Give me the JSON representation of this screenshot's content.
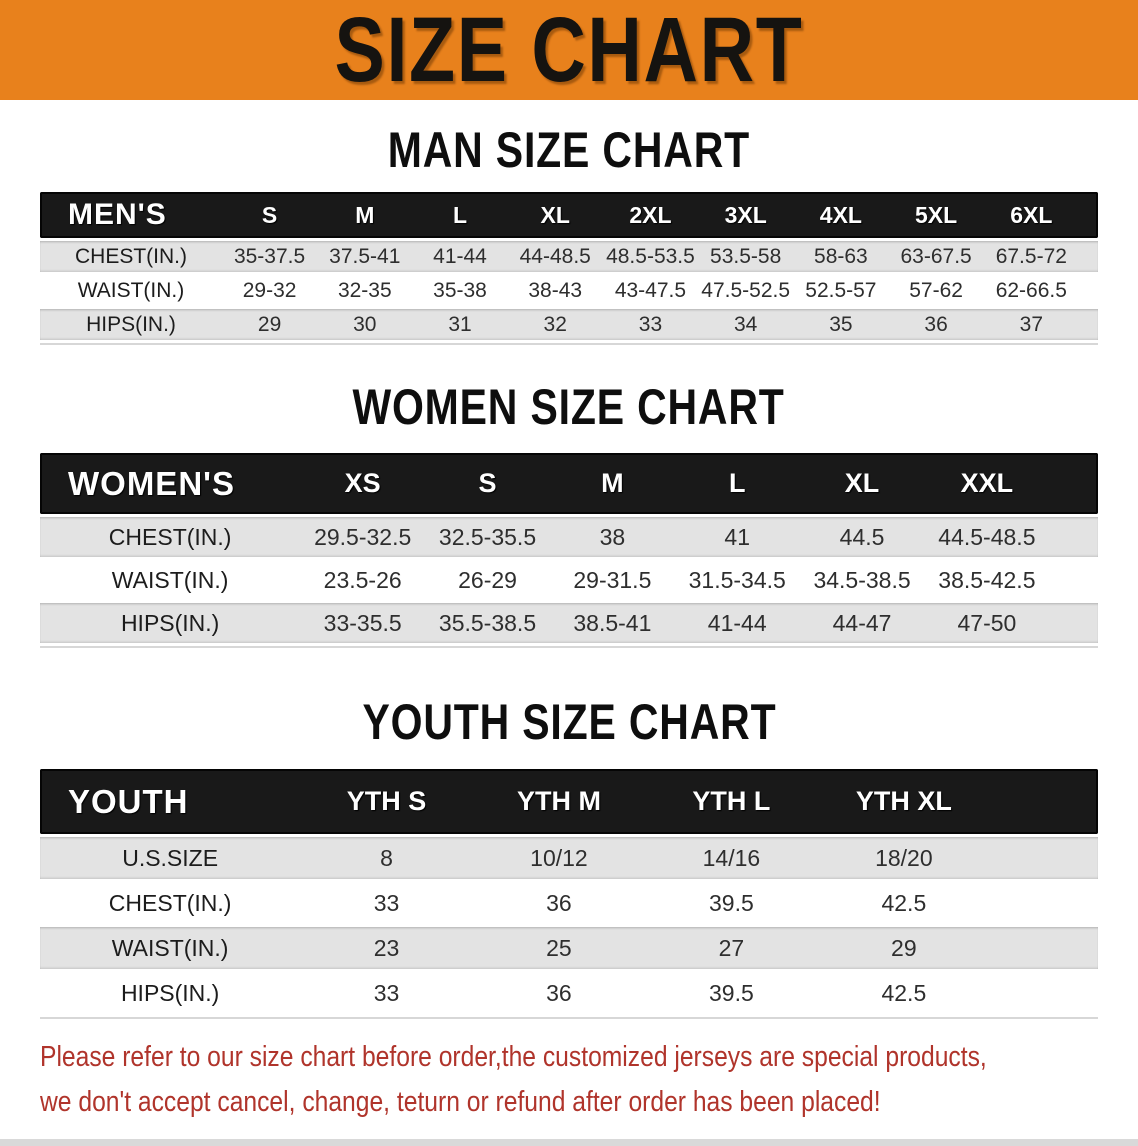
{
  "banner": {
    "title": "SIZE CHART"
  },
  "colors": {
    "banner_bg": "#E8811C",
    "header_bar_bg": "#191919",
    "row_shade": "#E3E3E3",
    "note_red": "#B0342B"
  },
  "men": {
    "heading": "MAN SIZE CHART",
    "label": "MEN'S",
    "sizes": [
      "S",
      "M",
      "L",
      "XL",
      "2XL",
      "3XL",
      "4XL",
      "5XL",
      "6XL"
    ],
    "rows": [
      {
        "label": "CHEST(IN.)",
        "values": [
          "35-37.5",
          "37.5-41",
          "41-44",
          "44-48.5",
          "48.5-53.5",
          "53.5-58",
          "58-63",
          "63-67.5",
          "67.5-72"
        ]
      },
      {
        "label": "WAIST(IN.)",
        "values": [
          "29-32",
          "32-35",
          "35-38",
          "38-43",
          "43-47.5",
          "47.5-52.5",
          "52.5-57",
          "57-62",
          "62-66.5"
        ]
      },
      {
        "label": "HIPS(IN.)",
        "values": [
          "29",
          "30",
          "31",
          "32",
          "33",
          "34",
          "35",
          "36",
          "37"
        ]
      }
    ]
  },
  "women": {
    "heading": "WOMEN SIZE CHART",
    "label": "WOMEN'S",
    "sizes": [
      "XS",
      "S",
      "M",
      "L",
      "XL",
      "XXL"
    ],
    "rows": [
      {
        "label": "CHEST(IN.)",
        "values": [
          "29.5-32.5",
          "32.5-35.5",
          "38",
          "41",
          "44.5",
          "44.5-48.5"
        ]
      },
      {
        "label": "WAIST(IN.)",
        "values": [
          "23.5-26",
          "26-29",
          "29-31.5",
          "31.5-34.5",
          "34.5-38.5",
          "38.5-42.5"
        ]
      },
      {
        "label": "HIPS(IN.)",
        "values": [
          "33-35.5",
          "35.5-38.5",
          "38.5-41",
          "41-44",
          "44-47",
          "47-50"
        ]
      }
    ]
  },
  "youth": {
    "heading": "YOUTH SIZE CHART",
    "label": "YOUTH",
    "sizes": [
      "YTH S",
      "YTH M",
      "YTH L",
      "YTH XL"
    ],
    "rows": [
      {
        "label": "U.S.SIZE",
        "values": [
          "8",
          "10/12",
          "14/16",
          "18/20"
        ]
      },
      {
        "label": "CHEST(IN.)",
        "values": [
          "33",
          "36",
          "39.5",
          "42.5"
        ]
      },
      {
        "label": "WAIST(IN.)",
        "values": [
          "23",
          "25",
          "27",
          "29"
        ]
      },
      {
        "label": "HIPS(IN.)",
        "values": [
          "33",
          "36",
          "39.5",
          "42.5"
        ]
      }
    ]
  },
  "note": {
    "line1": "Please refer to our size chart before order,the customized jerseys are special products,",
    "line2": "we don't accept cancel, change, teturn or refund after order has been placed!"
  }
}
